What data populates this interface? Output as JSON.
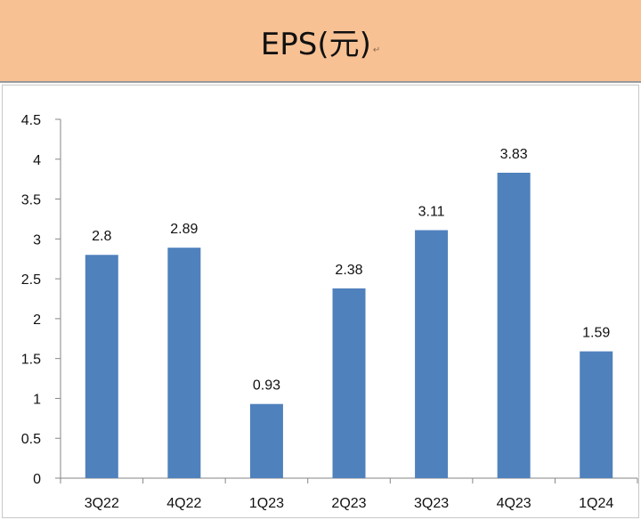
{
  "header": {
    "title": "EPS(元)",
    "return_mark": "↵"
  },
  "colors": {
    "header_bg": "#f8c193",
    "bar": "#4f81bd",
    "axis": "#868686"
  },
  "chart_data": {
    "type": "bar",
    "title": "EPS(元)",
    "categories": [
      "3Q22",
      "4Q22",
      "1Q23",
      "2Q23",
      "3Q23",
      "4Q23",
      "1Q24"
    ],
    "values": [
      2.8,
      2.89,
      0.93,
      2.38,
      3.11,
      3.83,
      1.59
    ],
    "value_labels": [
      "2.8",
      "2.89",
      "0.93",
      "2.38",
      "3.11",
      "3.83",
      "1.59"
    ],
    "ylim": [
      0,
      4.5
    ],
    "yticks": [
      0,
      0.5,
      1,
      1.5,
      2,
      2.5,
      3,
      3.5,
      4,
      4.5
    ],
    "ytick_labels": [
      "0",
      "0.5",
      "1",
      "1.5",
      "2",
      "2.5",
      "3",
      "3.5",
      "4",
      "4.5"
    ],
    "xlabel": "",
    "ylabel": "",
    "grid": false,
    "legend": "none"
  }
}
